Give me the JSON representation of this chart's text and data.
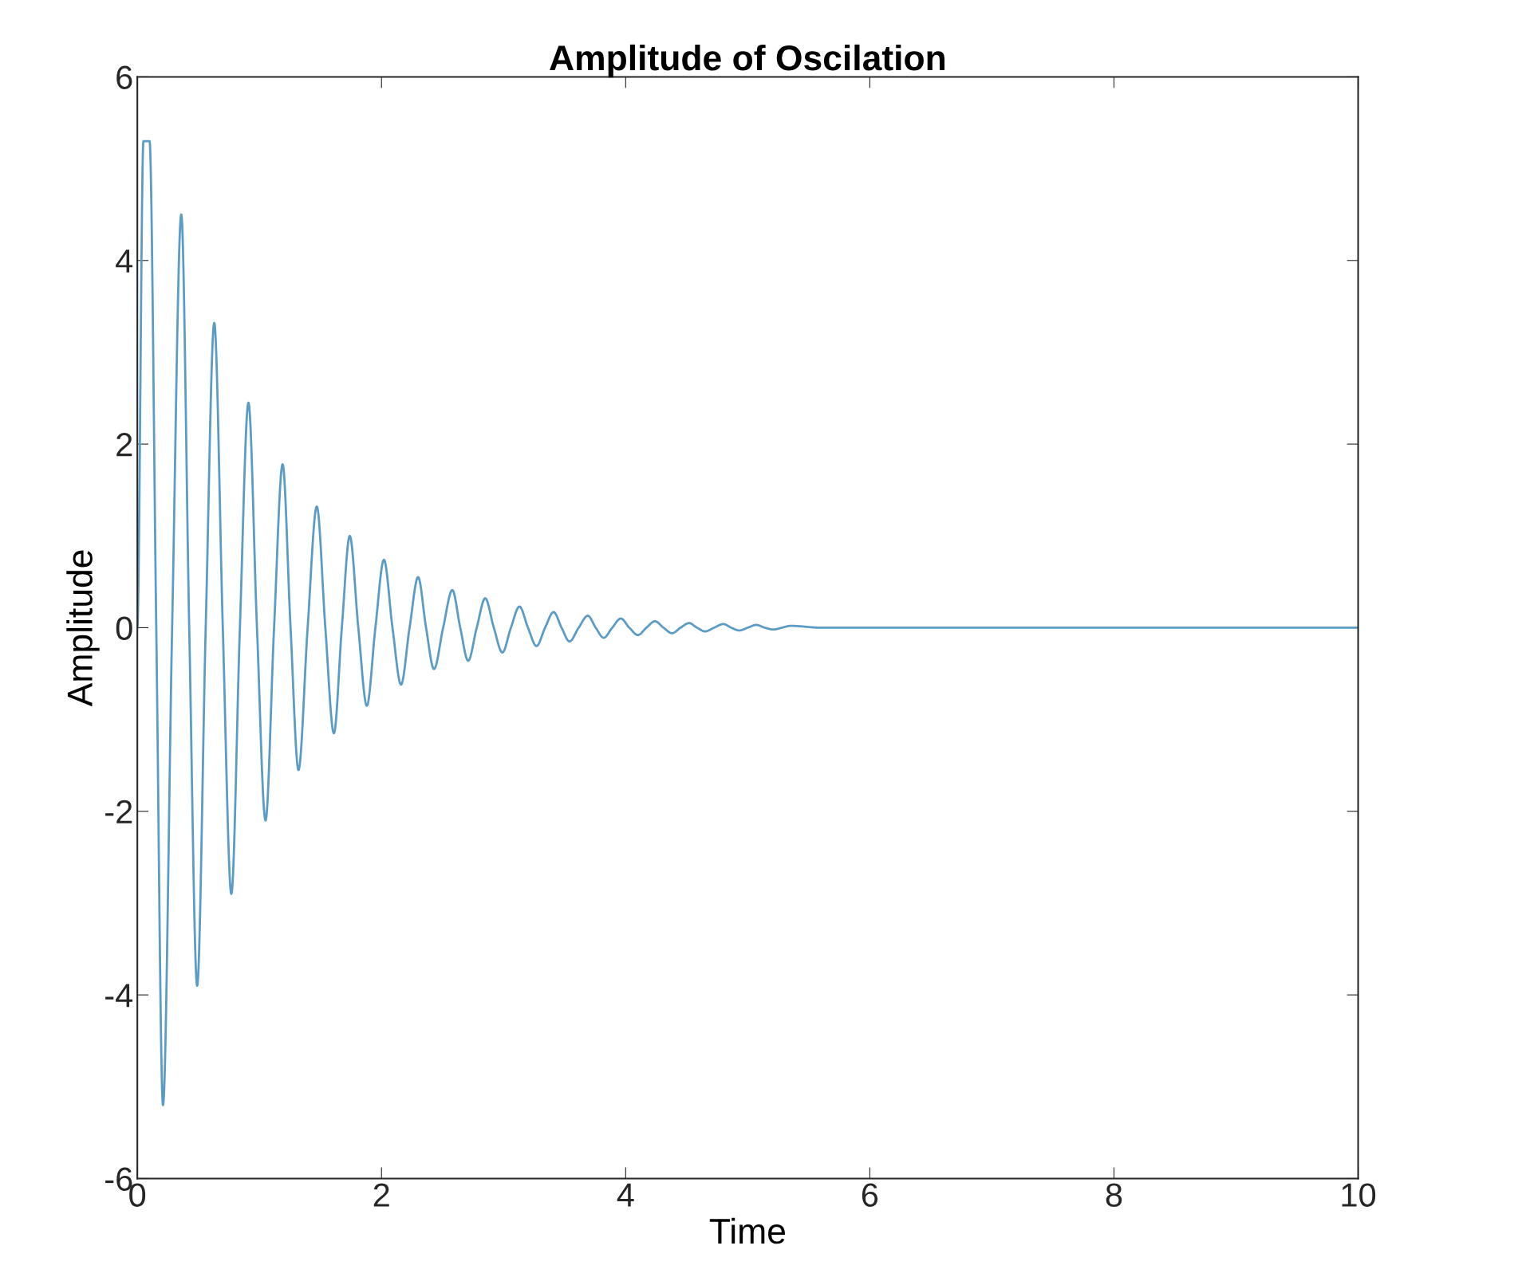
{
  "chart_data": {
    "type": "line",
    "title": "Amplitude of Oscilation",
    "xlabel": "Time",
    "ylabel": "Amplitude",
    "xlim": [
      0,
      10
    ],
    "ylim": [
      -6,
      6
    ],
    "xticks": [
      0,
      2,
      4,
      6,
      8,
      10
    ],
    "yticks": [
      -6,
      -4,
      -2,
      0,
      2,
      4,
      6
    ],
    "grid": false,
    "legend": false,
    "marker": "none",
    "line_style": "solid",
    "series": [
      {
        "color": "#5a9cc5",
        "x": [
          0,
          0.05,
          0.1,
          0.155,
          0.21,
          0.285,
          0.36,
          0.425,
          0.49,
          0.56,
          0.63,
          0.7,
          0.77,
          0.84,
          0.91,
          0.98,
          1.05,
          1.12,
          1.19,
          1.255,
          1.32,
          1.395,
          1.47,
          1.54,
          1.61,
          1.675,
          1.74,
          1.81,
          1.88,
          1.95,
          2.02,
          2.09,
          2.16,
          2.23,
          2.3,
          2.365,
          2.43,
          2.505,
          2.58,
          2.645,
          2.71,
          2.78,
          2.85,
          2.92,
          2.99,
          3.06,
          3.13,
          3.2,
          3.27,
          3.34,
          3.41,
          3.475,
          3.54,
          3.615,
          3.69,
          3.755,
          3.82,
          3.89,
          3.96,
          4.03,
          4.1,
          4.17,
          4.24,
          4.31,
          4.38,
          4.45,
          4.52,
          4.585,
          4.65,
          4.725,
          4.8,
          4.865,
          4.93,
          5.0,
          5.07,
          5.14,
          5.21,
          5.28,
          5.35,
          5.6,
          10
        ],
        "values": [
          0,
          5.3,
          5.3,
          0,
          -5.2,
          0,
          4.5,
          0,
          -3.9,
          0,
          3.32,
          0,
          -2.9,
          0,
          2.45,
          0,
          -2.1,
          0,
          1.78,
          0,
          -1.55,
          0,
          1.32,
          0,
          -1.15,
          0,
          1.0,
          0,
          -0.85,
          0,
          0.74,
          0,
          -0.62,
          0,
          0.55,
          0,
          -0.45,
          0,
          0.41,
          0,
          -0.36,
          0,
          0.32,
          0,
          -0.27,
          0,
          0.23,
          0,
          -0.2,
          0,
          0.17,
          0,
          -0.15,
          0,
          0.13,
          0,
          -0.11,
          0,
          0.1,
          0,
          -0.08,
          0,
          0.07,
          0,
          -0.06,
          0,
          0.05,
          0,
          -0.04,
          0,
          0.04,
          0,
          -0.03,
          0,
          0.03,
          0,
          -0.02,
          0,
          0.02,
          0,
          0
        ]
      }
    ]
  }
}
